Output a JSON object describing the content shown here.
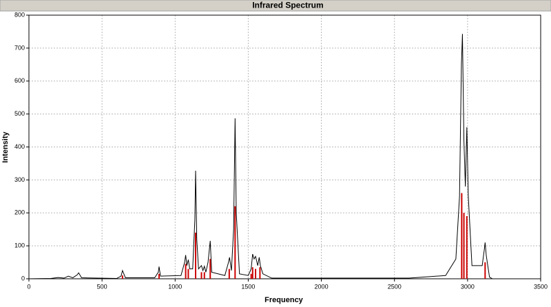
{
  "chart_data": {
    "type": "line",
    "title": "Infrared Spectrum",
    "xlabel": "Frequency",
    "ylabel": "Intensity",
    "xlim": [
      0,
      3500
    ],
    "ylim": [
      0,
      800
    ],
    "xticks": [
      0,
      500,
      1000,
      1500,
      2000,
      2500,
      3000,
      3500
    ],
    "yticks": [
      0,
      100,
      200,
      300,
      400,
      500,
      600,
      700,
      800
    ],
    "grid": true,
    "series": [
      {
        "type": "line",
        "color": "#000000",
        "x": [
          0,
          150,
          200,
          240,
          270,
          300,
          330,
          340,
          360,
          600,
          630,
          640,
          660,
          860,
          885,
          890,
          900,
          1040,
          1065,
          1072,
          1080,
          1090,
          1100,
          1120,
          1135,
          1140,
          1148,
          1160,
          1180,
          1190,
          1200,
          1210,
          1225,
          1240,
          1250,
          1340,
          1365,
          1372,
          1385,
          1400,
          1410,
          1418,
          1440,
          1500,
          1520,
          1530,
          1540,
          1550,
          1565,
          1575,
          1583,
          1600,
          1660,
          2600,
          2850,
          2920,
          2945,
          2958,
          2965,
          2975,
          2985,
          2995,
          3005,
          3030,
          3100,
          3115,
          3120,
          3128,
          3150,
          3170
        ],
        "values": [
          0,
          1,
          4,
          2,
          8,
          3,
          12,
          18,
          3,
          1,
          8,
          25,
          3,
          3,
          20,
          37,
          8,
          10,
          50,
          72,
          40,
          58,
          30,
          30,
          180,
          328,
          120,
          30,
          40,
          25,
          38,
          20,
          50,
          115,
          20,
          10,
          50,
          65,
          25,
          150,
          487,
          200,
          15,
          10,
          30,
          75,
          60,
          68,
          40,
          65,
          40,
          15,
          2,
          2,
          10,
          60,
          250,
          650,
          743,
          420,
          280,
          460,
          250,
          40,
          40,
          90,
          110,
          70,
          5,
          0
        ]
      },
      {
        "type": "stick",
        "color": "#cc0000",
        "x": [
          640,
          890,
          1072,
          1090,
          1140,
          1180,
          1200,
          1240,
          1370,
          1410,
          1520,
          1530,
          1550,
          1580,
          2960,
          2975,
          2995,
          3120
        ],
        "values": [
          10,
          15,
          45,
          30,
          140,
          20,
          20,
          60,
          30,
          220,
          15,
          35,
          30,
          35,
          260,
          200,
          190,
          50
        ]
      }
    ]
  }
}
